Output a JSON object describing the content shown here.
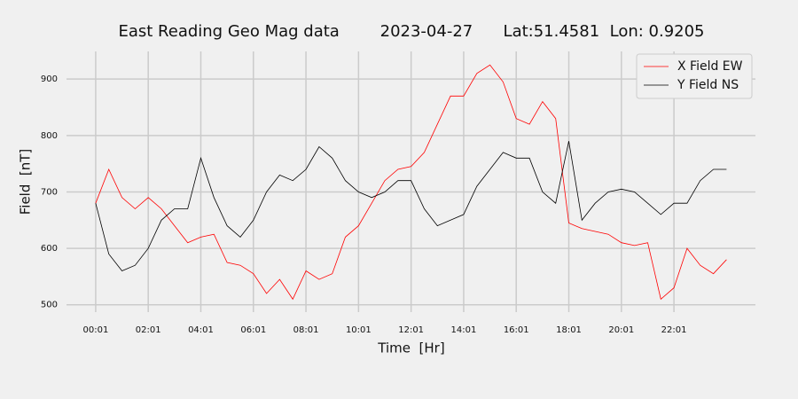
{
  "chart_data": {
    "type": "line",
    "title": "East Reading Geo Mag data        2023-04-27      Lat:51.4581  Lon: 0.9205",
    "x_label": "Time  [Hr]",
    "y_label": "Field  [nT]",
    "x": [
      0,
      0.5,
      1,
      1.5,
      2,
      2.5,
      3,
      3.5,
      4,
      4.5,
      5,
      5.5,
      6,
      6.5,
      7,
      7.5,
      8,
      8.5,
      9,
      9.5,
      10,
      10.5,
      11,
      11.5,
      12,
      12.5,
      13,
      13.5,
      14,
      14.5,
      15,
      15.5,
      16,
      16.5,
      17,
      17.5,
      18,
      18.5,
      19,
      19.5,
      20,
      20.5,
      21,
      21.5,
      22,
      22.5,
      23,
      23.5,
      24
    ],
    "series": [
      {
        "name": "X Field EW",
        "color": "#ff0000",
        "values": [
          680,
          740,
          690,
          670,
          690,
          670,
          640,
          610,
          620,
          625,
          575,
          570,
          555,
          520,
          545,
          510,
          560,
          545,
          555,
          620,
          640,
          680,
          720,
          740,
          745,
          770,
          820,
          870,
          870,
          910,
          925,
          895,
          830,
          820,
          860,
          830,
          645,
          635,
          630,
          625,
          610,
          605,
          610,
          510,
          530,
          600,
          570,
          555,
          580
        ]
      },
      {
        "name": "Y Field NS",
        "color": "#000000",
        "values": [
          680,
          590,
          560,
          570,
          600,
          650,
          670,
          670,
          760,
          690,
          640,
          620,
          650,
          700,
          730,
          720,
          740,
          780,
          760,
          720,
          700,
          690,
          700,
          720,
          720,
          670,
          640,
          650,
          660,
          710,
          740,
          770,
          760,
          760,
          700,
          680,
          790,
          650,
          680,
          700,
          705,
          700,
          680,
          660,
          680,
          680,
          720,
          740,
          740
        ]
      }
    ],
    "xlim": [
      -1.11,
      25.1
    ],
    "xticks": [
      {
        "value": 0,
        "label": "00:01"
      },
      {
        "value": 2,
        "label": "02:01"
      },
      {
        "value": 4,
        "label": "04:01"
      },
      {
        "value": 6,
        "label": "06:01"
      },
      {
        "value": 8,
        "label": "08:01"
      },
      {
        "value": 10,
        "label": "10:01"
      },
      {
        "value": 12,
        "label": "12:01"
      },
      {
        "value": 14,
        "label": "14:01"
      },
      {
        "value": 16,
        "label": "16:01"
      },
      {
        "value": 18,
        "label": "18:01"
      },
      {
        "value": 20,
        "label": "20:01"
      },
      {
        "value": 22,
        "label": "22:01"
      }
    ],
    "ylim": [
      487,
      949
    ],
    "yticks": [
      500,
      600,
      700,
      800,
      900
    ],
    "grid": true,
    "legend": "upper right"
  }
}
